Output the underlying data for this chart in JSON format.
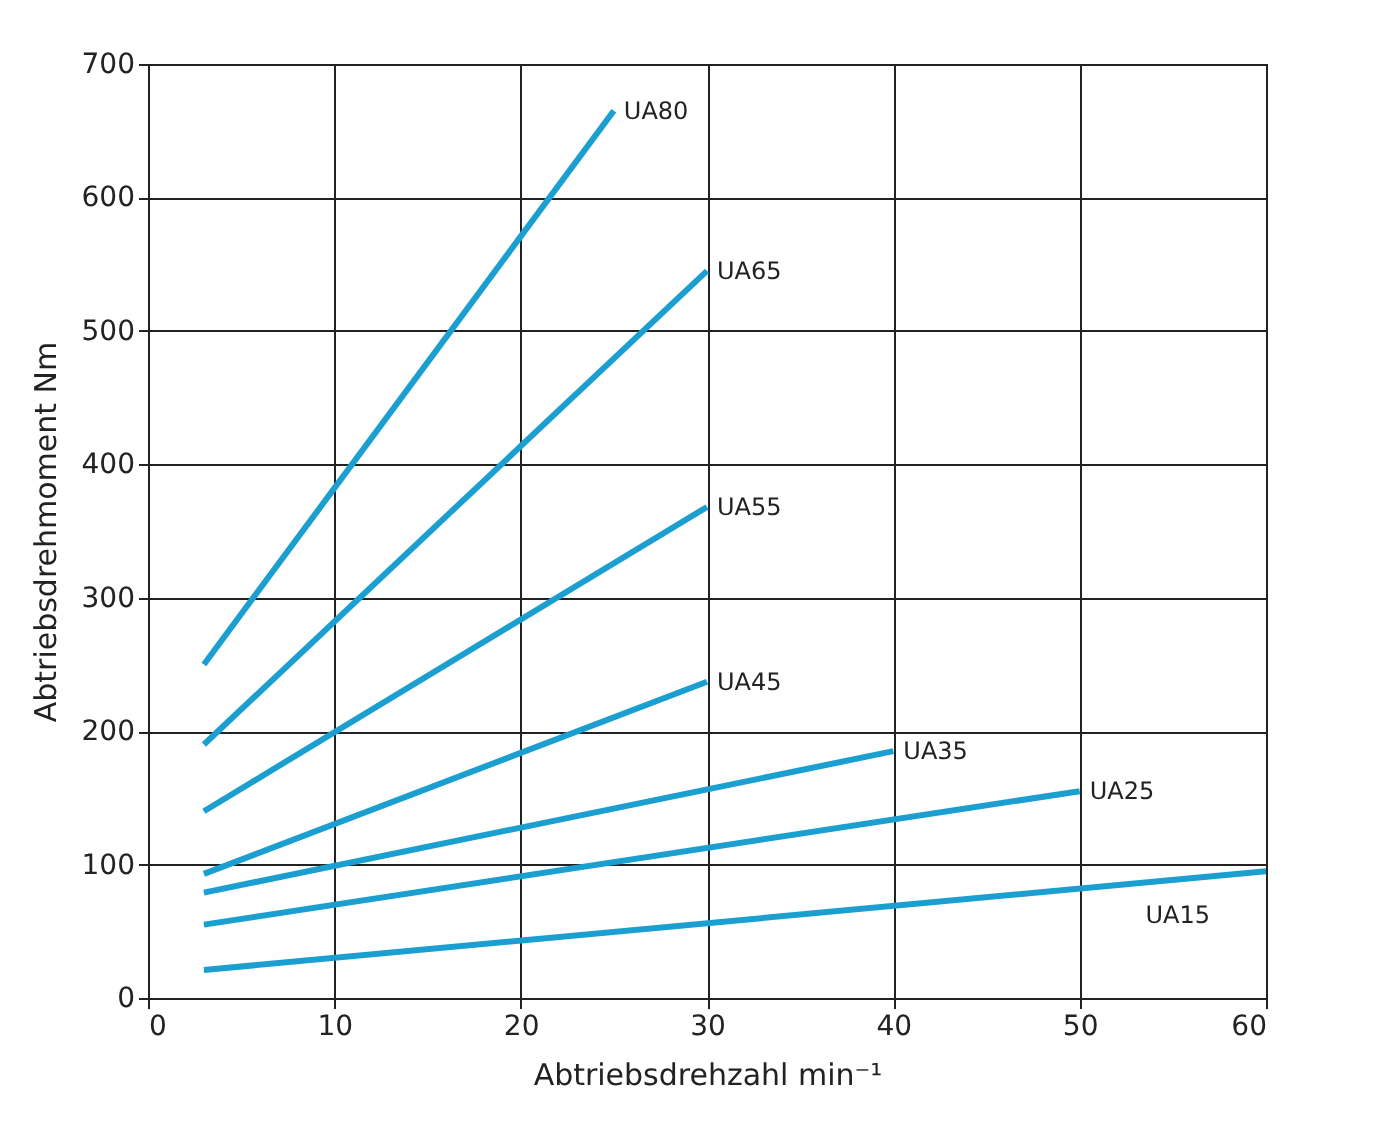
{
  "chart_data": {
    "type": "line",
    "xlabel": "Abtriebsdrehzahl min⁻¹",
    "ylabel": "Abtriebsdrehmoment Nm",
    "xlim": [
      0,
      60
    ],
    "xticks": [
      0,
      10,
      20,
      30,
      40,
      50,
      60
    ],
    "ylim": [
      0,
      700
    ],
    "yticks": [
      0,
      100,
      200,
      300,
      400,
      500,
      600,
      700
    ],
    "grid": true,
    "marker": "none",
    "line_style": "solid",
    "series": [
      {
        "name": "UA80",
        "color": "#1a9fd0",
        "x": [
          3,
          25
        ],
        "values": [
          250,
          665
        ]
      },
      {
        "name": "UA65",
        "color": "#1a9fd0",
        "x": [
          3,
          30
        ],
        "values": [
          190,
          545
        ]
      },
      {
        "name": "UA55",
        "color": "#1a9fd0",
        "x": [
          3,
          30
        ],
        "values": [
          140,
          368
        ]
      },
      {
        "name": "UA45",
        "color": "#1a9fd0",
        "x": [
          3,
          30
        ],
        "values": [
          93,
          237
        ]
      },
      {
        "name": "UA35",
        "color": "#1a9fd0",
        "x": [
          3,
          40
        ],
        "values": [
          79,
          185
        ]
      },
      {
        "name": "UA25",
        "color": "#1a9fd0",
        "x": [
          3,
          50
        ],
        "values": [
          55,
          155
        ]
      },
      {
        "name": "UA15",
        "color": "#1a9fd0",
        "x": [
          3,
          60
        ],
        "values": [
          21,
          95
        ]
      }
    ]
  }
}
